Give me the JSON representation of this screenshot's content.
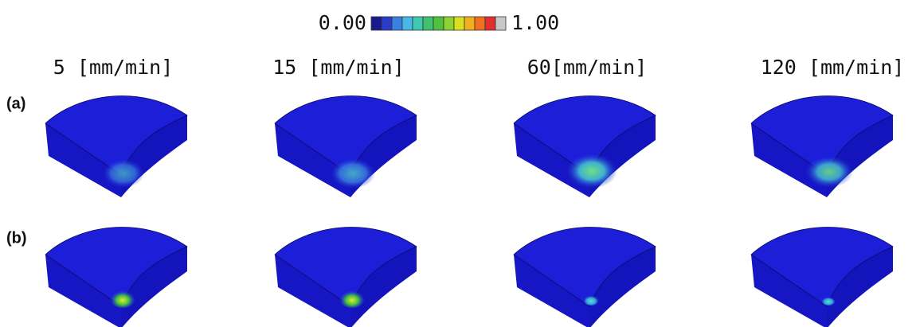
{
  "colorbar": {
    "min_label": "0.00",
    "max_label": "1.00"
  },
  "columns": [
    "5 [mm/min]",
    "15 [mm/min]",
    "60[mm/min]",
    "120 [mm/min]"
  ],
  "rows": [
    "(a)",
    "(b)"
  ]
}
